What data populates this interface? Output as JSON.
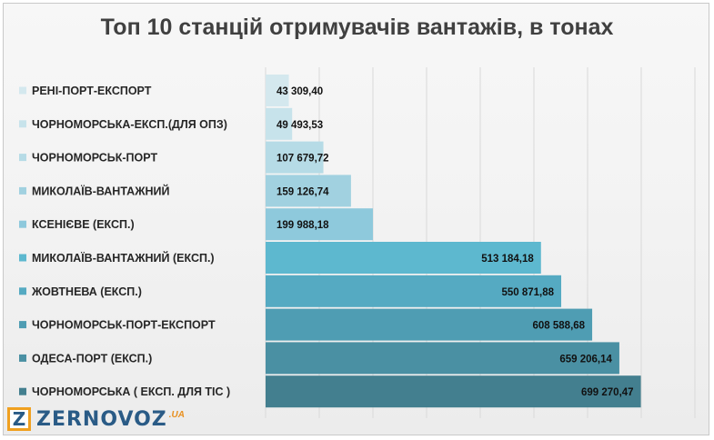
{
  "logo": {
    "mark": "Z",
    "name": "ZERNOVOZ",
    "suffix": ".UA"
  },
  "chart_data": {
    "type": "bar",
    "orientation": "horizontal",
    "title": "Топ 10 станцій отримувачів вантажів, в тонах",
    "categories": [
      "РЕНІ-ПОРТ-ЕКСПОРТ",
      "ЧОРНОМОРСЬКА-ЕКСП.(ДЛЯ ОПЗ)",
      "ЧОРНОМОРСЬК-ПОРТ",
      "МИКОЛАЇВ-ВАНТАЖНИЙ",
      "КСЕНІЄВЕ (ЕКСП.)",
      "МИКОЛАЇВ-ВАНТАЖНИЙ  (ЕКСП.)",
      "ЖОВТНЕВА  (ЕКСП.)",
      "ЧОРНОМОРСЬК-ПОРТ-ЕКСПОРТ",
      "ОДЕСА-ПОРТ  (ЕКСП.)",
      "ЧОРНОМОРСЬКА ( ЕКСП. ДЛЯ ТІС )"
    ],
    "values": [
      43309.4,
      49493.53,
      107679.72,
      159126.74,
      199988.18,
      513184.18,
      550871.88,
      608588.68,
      659206.14,
      699270.47
    ],
    "value_labels": [
      "43 309,40",
      "49 493,53",
      "107 679,72",
      "159 126,74",
      "199 988,18",
      "513 184,18",
      "550 871,88",
      "608 588,68",
      "659 206,14",
      "699 270,47"
    ],
    "xlim": [
      0,
      800000
    ],
    "grid": true,
    "colors": [
      "#d4e8ee",
      "#c7e3eb",
      "#b6dbe6",
      "#a1d1e0",
      "#8ec9dc",
      "#5db8cf",
      "#55aac2",
      "#4f9db3",
      "#4a90a3",
      "#437f8f"
    ]
  }
}
